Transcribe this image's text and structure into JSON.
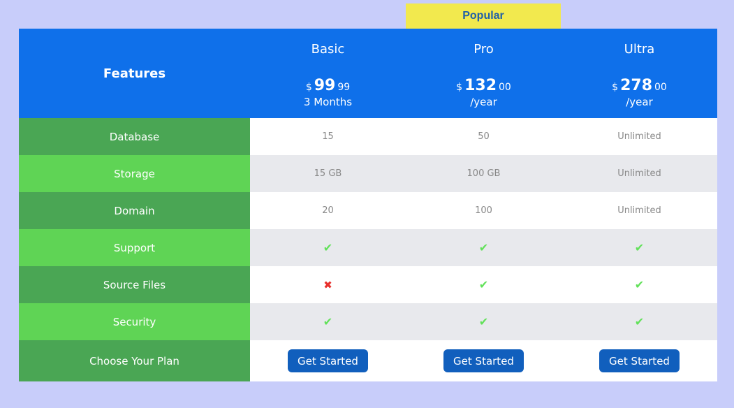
{
  "badge": "Popular",
  "header": {
    "features": "Features",
    "plans": [
      {
        "name": "Basic",
        "currency": "$",
        "amount": "99",
        "cents": "99",
        "period": "3 Months"
      },
      {
        "name": "Pro",
        "currency": "$",
        "amount": "132",
        "cents": "00",
        "period": "/year"
      },
      {
        "name": "Ultra",
        "currency": "$",
        "amount": "278",
        "cents": "00",
        "period": "/year"
      }
    ]
  },
  "rows": [
    {
      "feature": "Database",
      "values": [
        "15",
        "50",
        "Unlimited"
      ]
    },
    {
      "feature": "Storage",
      "values": [
        "15 GB",
        "100 GB",
        "Unlimited"
      ]
    },
    {
      "feature": "Domain",
      "values": [
        "20",
        "100",
        "Unlimited"
      ]
    },
    {
      "feature": "Support",
      "values": [
        "check",
        "check",
        "check"
      ]
    },
    {
      "feature": "Source Files",
      "values": [
        "cross",
        "check",
        "check"
      ]
    },
    {
      "feature": "Security",
      "values": [
        "check",
        "check",
        "check"
      ]
    }
  ],
  "choose": {
    "label": "Choose Your Plan",
    "button": "Get Started"
  },
  "colors": {
    "header": "#0f70ea",
    "feature_dark": "#4aa654",
    "feature_light": "#5fd455",
    "button": "#115fbd",
    "badge": "#f2e94e",
    "check": "#62e15a",
    "cross": "#e8302c"
  }
}
